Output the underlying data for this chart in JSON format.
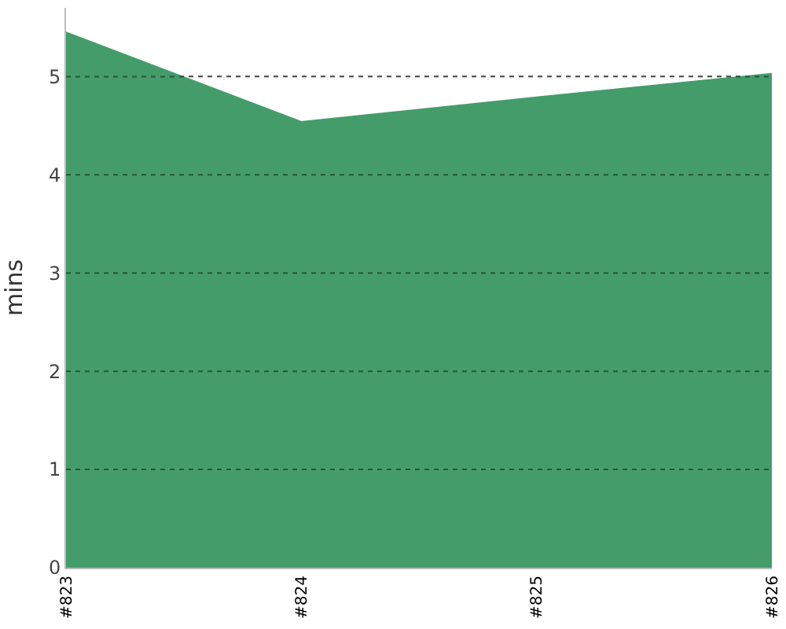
{
  "chart_data": {
    "type": "area",
    "ylabel": "mins",
    "categories": [
      "#823",
      "#824",
      "#825",
      "#826"
    ],
    "series": [
      {
        "color": "#459c6b",
        "values": [
          5.45,
          4.54,
          4.79,
          5.03
        ]
      }
    ],
    "ylim": [
      0,
      5.7
    ],
    "yticks": [
      0,
      1,
      2,
      3,
      4,
      5
    ],
    "grid": "y"
  }
}
